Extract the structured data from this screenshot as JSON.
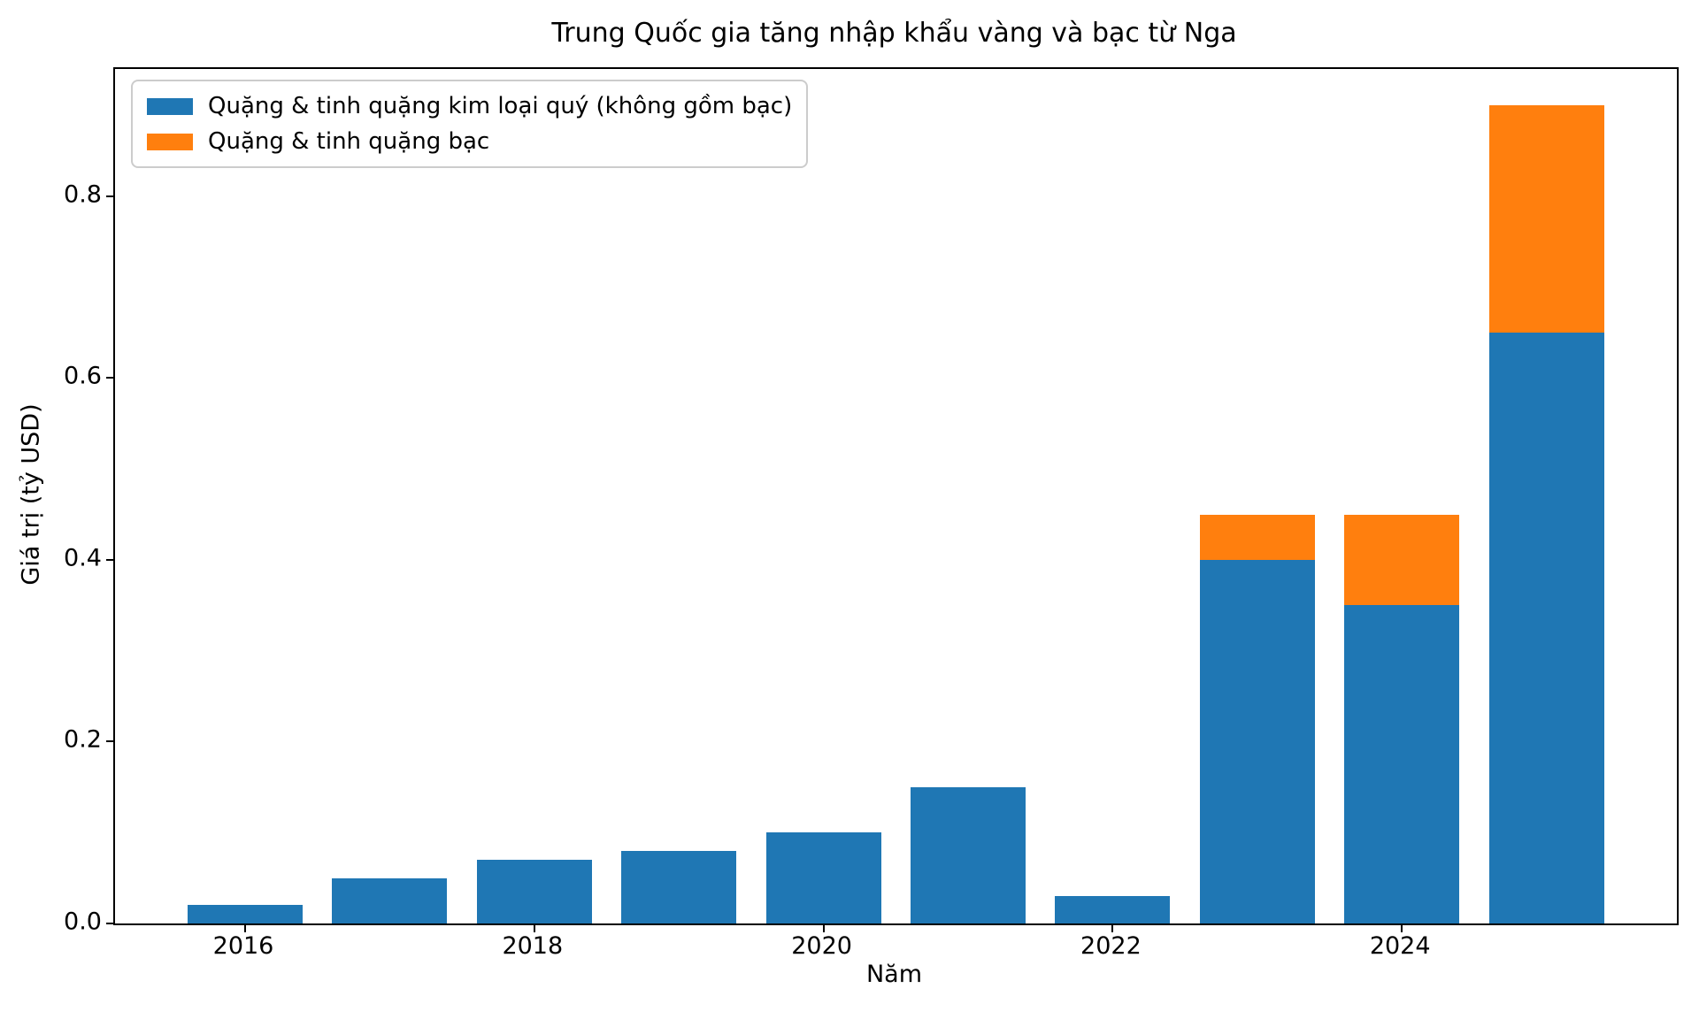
{
  "title": "Trung Quốc gia tăng nhập khẩu vàng và bạc từ Nga",
  "chart_data": {
    "type": "bar",
    "stacked": true,
    "title": "Trung Quốc gia tăng nhập khẩu vàng và bạc từ Nga",
    "xlabel": "Năm",
    "ylabel": "Giá trị (tỷ USD)",
    "categories": [
      2016,
      2017,
      2018,
      2019,
      2020,
      2021,
      2022,
      2023,
      2024,
      2025
    ],
    "series": [
      {
        "name": "Quặng & tinh quặng kim loại quý (không gồm bạc)",
        "color": "#1f77b4",
        "values": [
          0.02,
          0.05,
          0.07,
          0.08,
          0.1,
          0.15,
          0.03,
          0.4,
          0.35,
          0.65
        ]
      },
      {
        "name": "Quặng & tinh quặng bạc",
        "color": "#ff7f0e",
        "values": [
          0,
          0,
          0,
          0,
          0,
          0,
          0,
          0.05,
          0.1,
          0.25
        ]
      }
    ],
    "xticks": [
      2016,
      2018,
      2020,
      2022,
      2024
    ],
    "yticks": [
      0.0,
      0.2,
      0.4,
      0.6,
      0.8
    ],
    "ytick_labels": [
      "0.0",
      "0.2",
      "0.4",
      "0.6",
      "0.8"
    ],
    "ylim": [
      0,
      0.94
    ],
    "grid": false,
    "legend_position": "upper left"
  }
}
